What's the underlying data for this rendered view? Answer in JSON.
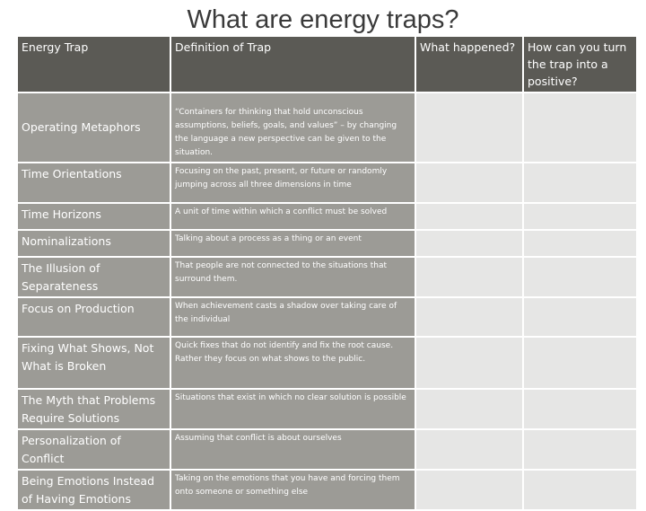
{
  "slide": {
    "title": "What are energy traps?"
  },
  "table": {
    "headers": [
      "Energy Trap",
      "Definition of Trap",
      "What happened?",
      "How can you turn the trap into a positive?"
    ],
    "rows": [
      {
        "trap": "Operating Metaphors",
        "definition": "“Containers for thinking that hold unconscious assumptions, beliefs, goals, and values” – by changing the language a new perspective can be given to the situation."
      },
      {
        "trap": "Time Orientations",
        "definition": "Focusing on the past, present, or future or randomly jumping across all three dimensions in time"
      },
      {
        "trap": "Time Horizons",
        "definition": "A unit of time within which a conflict must be solved"
      },
      {
        "trap": "Nominalizations",
        "definition": "Talking about a process as a thing or an event"
      },
      {
        "trap": "The Illusion of Separateness",
        "definition": "That people are not connected to the situations that surround them."
      },
      {
        "trap": "Focus on Production",
        "definition": "When achievement casts a shadow over taking care of the individual"
      },
      {
        "trap": "Fixing What Shows, Not What is Broken",
        "definition": "Quick fixes that do not identify and fix the root cause. Rather they focus on what shows to the public."
      },
      {
        "trap": "The Myth that Problems Require Solutions",
        "definition": "Situations that exist in which no clear solution is possible"
      },
      {
        "trap": "Personalization of Conflict",
        "definition": "Assuming that conflict is about ourselves"
      },
      {
        "trap": "Being Emotions Instead of Having Emotions",
        "definition": "Taking on the emotions that you have and forcing them onto someone or something else"
      }
    ]
  },
  "colors": {
    "header_bg": "#5b5a55",
    "row_bg": "#9c9b96",
    "empty_cell_bg": "#e6e6e5",
    "title_color": "#3a3a3a"
  }
}
